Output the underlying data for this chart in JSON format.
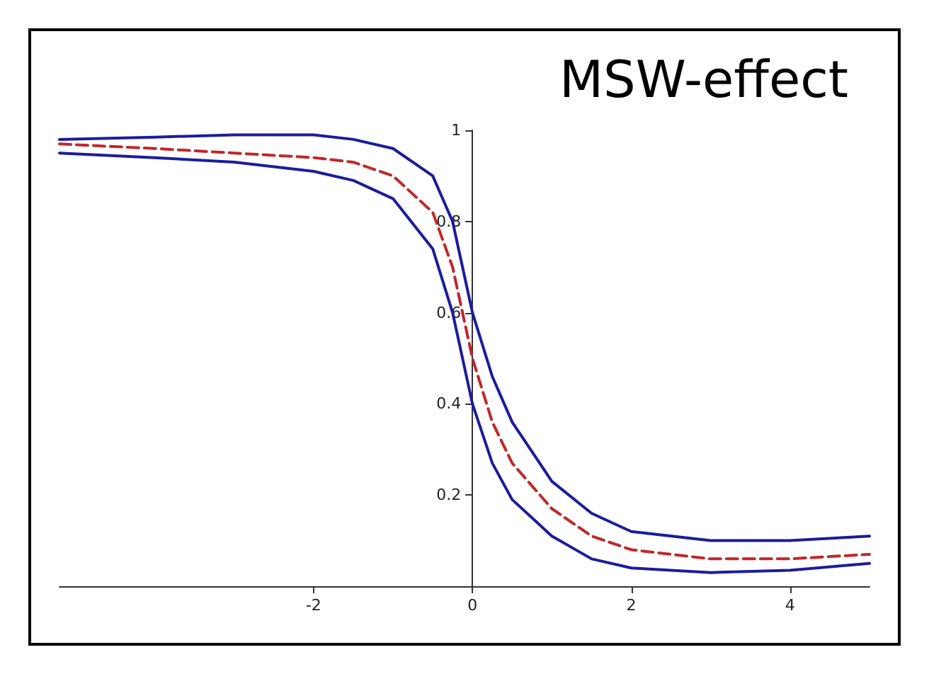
{
  "chart_data": {
    "type": "line",
    "title": "MSW-effect",
    "x": [
      -5.2,
      -4,
      -3,
      -2,
      -1.5,
      -1,
      -0.5,
      -0.25,
      0,
      0.25,
      0.5,
      1,
      1.5,
      2,
      3,
      4,
      5
    ],
    "series": [
      {
        "color": "#1c1c9c",
        "line_style": "solid",
        "values": [
          0.98,
          0.985,
          0.99,
          0.99,
          0.98,
          0.96,
          0.9,
          0.8,
          0.6,
          0.46,
          0.36,
          0.23,
          0.16,
          0.12,
          0.1,
          0.1,
          0.11
        ]
      },
      {
        "color": "#c0282a",
        "line_style": "dashed",
        "values": [
          0.97,
          0.96,
          0.95,
          0.94,
          0.93,
          0.9,
          0.82,
          0.7,
          0.5,
          0.36,
          0.27,
          0.17,
          0.11,
          0.08,
          0.06,
          0.06,
          0.07
        ]
      },
      {
        "color": "#1c1c9c",
        "line_style": "solid",
        "values": [
          0.95,
          0.94,
          0.93,
          0.91,
          0.89,
          0.85,
          0.74,
          0.6,
          0.4,
          0.27,
          0.19,
          0.11,
          0.06,
          0.04,
          0.03,
          0.035,
          0.05
        ]
      }
    ],
    "xlim": [
      -5.2,
      5
    ],
    "xticks": [
      -2,
      0,
      2,
      4
    ],
    "ylim": [
      0,
      1
    ],
    "yticks": [
      0.2,
      0.4,
      0.6,
      0.8,
      1
    ],
    "grid": false,
    "marker": "none"
  }
}
